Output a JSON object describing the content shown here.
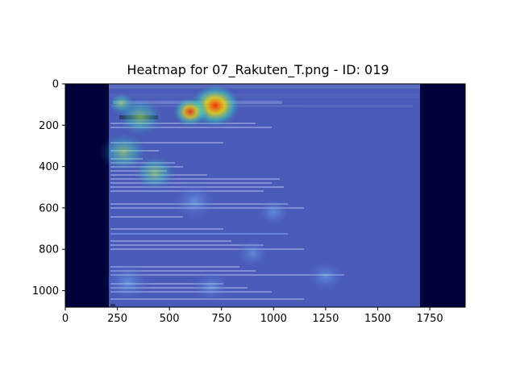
{
  "chart_data": {
    "type": "heatmap",
    "title": "Heatmap for 07_Rakuten_T.png - ID: 019",
    "xlabel": "",
    "ylabel": "",
    "xlim": [
      0,
      1920
    ],
    "ylim": [
      1080,
      0
    ],
    "x_ticks": [
      0,
      250,
      500,
      750,
      1000,
      1250,
      1500,
      1750
    ],
    "y_ticks": [
      0,
      200,
      400,
      600,
      800,
      1000
    ],
    "grid": false,
    "colormap": "jet",
    "screenshot_extent": {
      "x": [
        210,
        1720
      ],
      "y": [
        0,
        1080
      ]
    },
    "hotspots": [
      {
        "x": 720,
        "y": 105,
        "radius": 130,
        "intensity": 1.0
      },
      {
        "x": 600,
        "y": 135,
        "radius": 90,
        "intensity": 0.75
      },
      {
        "x": 270,
        "y": 95,
        "radius": 70,
        "intensity": 0.6
      },
      {
        "x": 360,
        "y": 160,
        "radius": 120,
        "intensity": 0.55
      },
      {
        "x": 280,
        "y": 330,
        "radius": 120,
        "intensity": 0.5
      },
      {
        "x": 430,
        "y": 430,
        "radius": 110,
        "intensity": 0.45
      },
      {
        "x": 620,
        "y": 570,
        "radius": 120,
        "intensity": 0.4
      },
      {
        "x": 1000,
        "y": 620,
        "radius": 90,
        "intensity": 0.35
      },
      {
        "x": 900,
        "y": 820,
        "radius": 90,
        "intensity": 0.3
      },
      {
        "x": 1250,
        "y": 930,
        "radius": 100,
        "intensity": 0.35
      },
      {
        "x": 300,
        "y": 960,
        "radius": 120,
        "intensity": 0.4
      },
      {
        "x": 700,
        "y": 980,
        "radius": 100,
        "intensity": 0.3
      }
    ]
  },
  "colors": {
    "background_dark": "#000033",
    "screenshot_tint": "#3c48a8",
    "hot": "#ff2a00",
    "warm": "#ffe600",
    "mid": "#36e0c0"
  }
}
